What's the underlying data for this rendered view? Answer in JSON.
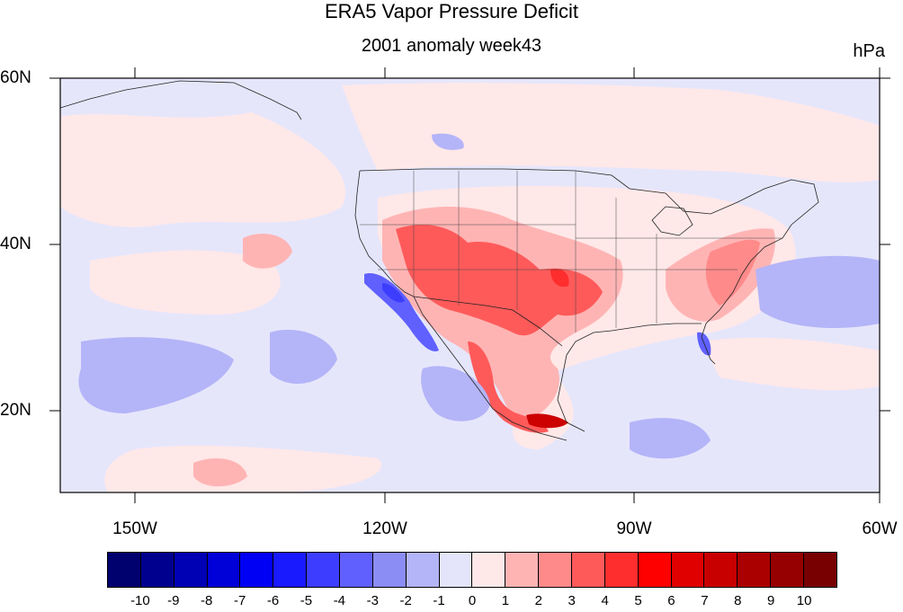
{
  "title": "ERA5 Vapor Pressure Deficit",
  "subtitle": "2001 anomaly week43",
  "units": "hPa",
  "lat_labels": [
    "60N",
    "40N",
    "20N"
  ],
  "lon_labels": [
    "150W",
    "120W",
    "90W",
    "60W"
  ],
  "colorbar": {
    "labels": [
      "-10",
      "-9",
      "-8",
      "-7",
      "-6",
      "-5",
      "-4",
      "-3",
      "-2",
      "-1",
      "0",
      "1",
      "2",
      "3",
      "4",
      "5",
      "6",
      "7",
      "8",
      "9",
      "10"
    ],
    "colors": [
      "#00006e",
      "#00008f",
      "#0000b4",
      "#0000d8",
      "#0000f5",
      "#1a1aff",
      "#3d3dff",
      "#6060ff",
      "#8c8cf5",
      "#b4b4f8",
      "#e4e4fb",
      "#ffe8e8",
      "#ffb4b4",
      "#ff8a8a",
      "#ff5a5a",
      "#ff2e2e",
      "#ff0000",
      "#e00000",
      "#c80000",
      "#aa0000",
      "#960000",
      "#780000"
    ]
  },
  "map": {
    "region": "North America / Eastern Pacific",
    "lon_range": [
      -160,
      -60
    ],
    "lat_range": [
      10,
      60
    ]
  }
}
